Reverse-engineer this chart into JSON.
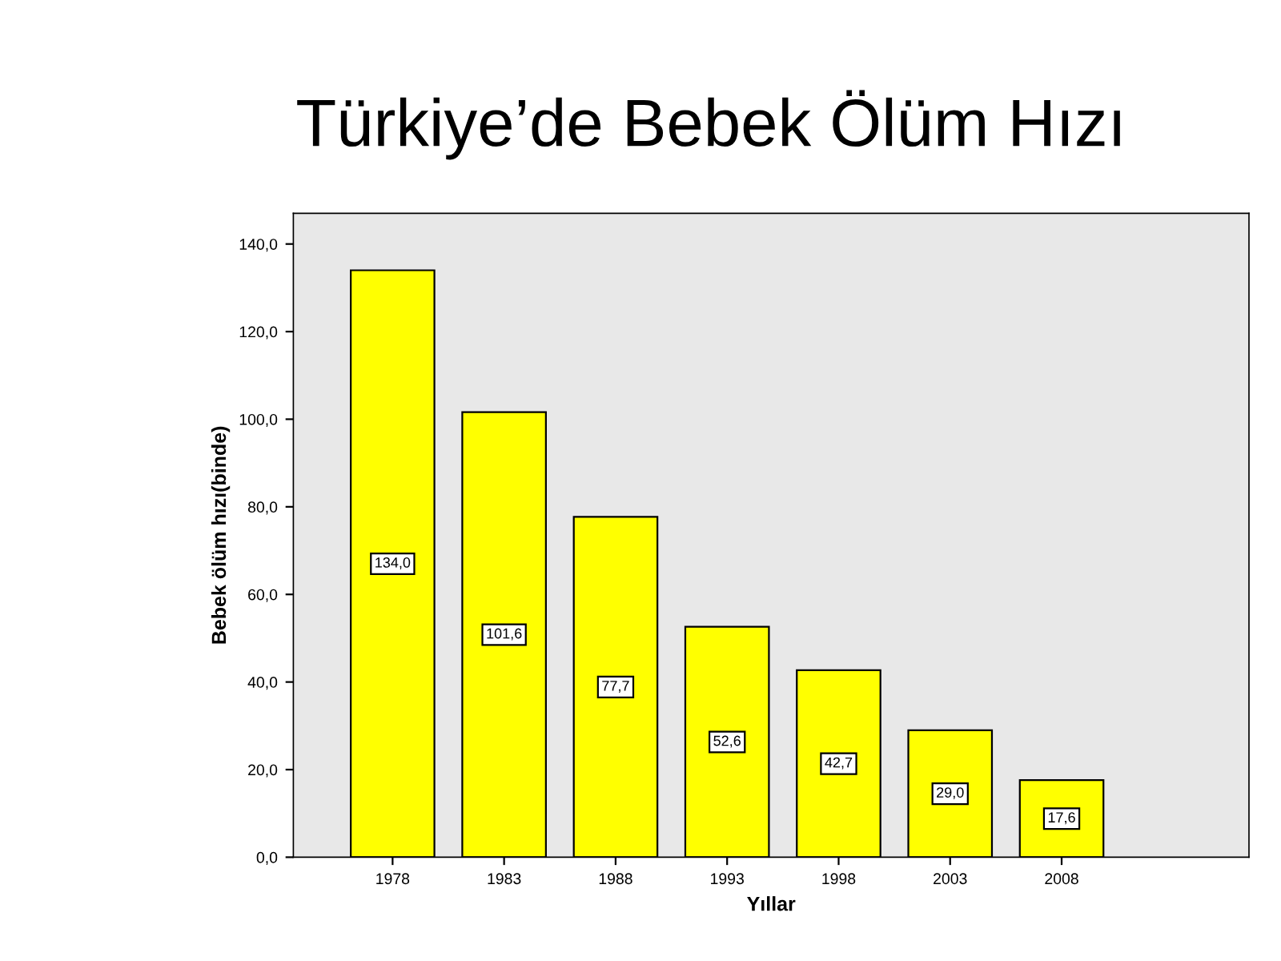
{
  "chart_data": {
    "type": "bar",
    "title": "Türkiye’de Bebek Ölüm Hızı",
    "xlabel": "Yıllar",
    "ylabel": "Bebek ölüm hızı(binde)",
    "categories": [
      "1978",
      "1983",
      "1988",
      "1993",
      "1998",
      "2003",
      "2008"
    ],
    "values": [
      134.0,
      101.6,
      77.7,
      52.6,
      42.7,
      29.0,
      17.6
    ],
    "value_labels": [
      "134,0",
      "101,6",
      "77,7",
      "52,6",
      "42,7",
      "29,0",
      "17,6"
    ],
    "color": "#ffff00",
    "ylim": [
      0,
      147
    ],
    "yticks": [
      {
        "value": 0,
        "label": "0,0"
      },
      {
        "value": 20,
        "label": "20,0"
      },
      {
        "value": 40,
        "label": "40,0"
      },
      {
        "value": 60,
        "label": "60,0"
      },
      {
        "value": 80,
        "label": "80,0"
      },
      {
        "value": 100,
        "label": "100,0"
      },
      {
        "value": 120,
        "label": "120,0"
      },
      {
        "value": 140,
        "label": "140,0"
      }
    ],
    "grid": false
  }
}
